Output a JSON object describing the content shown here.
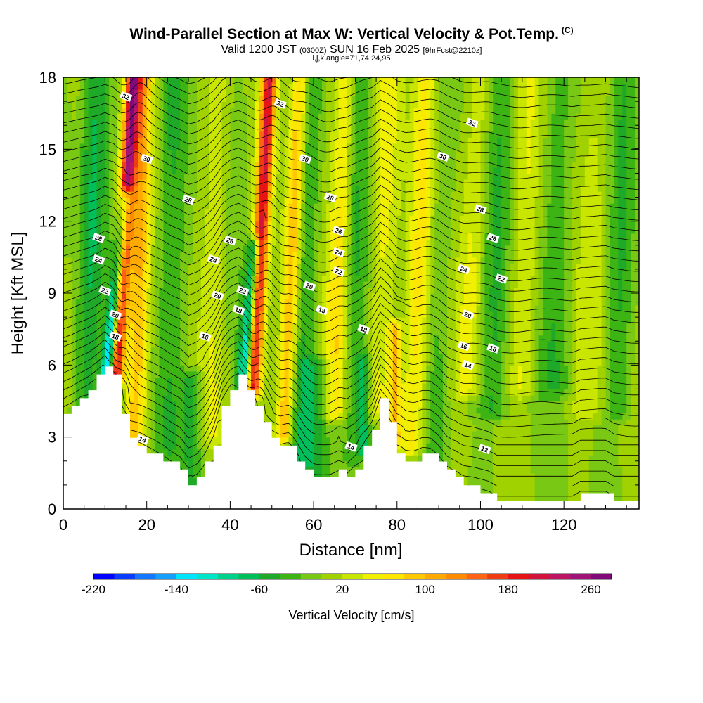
{
  "titles": {
    "main": "Wind-Parallel Section at Max W: Vertical Velocity & Pot.Temp.",
    "copyright": "(C)",
    "valid_prefix": "Valid 1200 JST",
    "valid_utc": "(0300Z)",
    "valid_date": "SUN 16 Feb 2025",
    "forecast": "[9hrFcst@2210z]",
    "params": "i,j,k,angle=71,74,24,95"
  },
  "chart_data": {
    "type": "heatmap",
    "title": "Wind-Parallel Section at Max W: Vertical Velocity & Pot.Temp.",
    "xlabel": "Distance [nm]",
    "ylabel": "Height [Kft MSL]",
    "xlim": [
      0,
      138
    ],
    "ylim": [
      0,
      18
    ],
    "x_ticks": [
      "0",
      "20",
      "40",
      "60",
      "80",
      "100",
      "120"
    ],
    "y_ticks": [
      "0",
      "3",
      "6",
      "9",
      "12",
      "15",
      "18"
    ],
    "colorbar": {
      "label": "Vertical Velocity [cm/s]",
      "min": -220,
      "max": 280,
      "step": 20,
      "tick_labels": [
        "-220",
        "-140",
        "-60",
        "20",
        "100",
        "180",
        "260"
      ],
      "colors": [
        "#0000ff",
        "#0a3cff",
        "#1478ff",
        "#14a0ff",
        "#00e6ff",
        "#00e6c8",
        "#00d28c",
        "#00be5a",
        "#1eaa28",
        "#3cb414",
        "#78c814",
        "#a0d200",
        "#c8e600",
        "#f0f000",
        "#ffe600",
        "#ffc800",
        "#ffaa00",
        "#ff8c00",
        "#ff6414",
        "#f03c14",
        "#e61414",
        "#d2143c",
        "#be1464",
        "#a01478",
        "#820a78"
      ]
    },
    "terrain_kft": [
      [
        0,
        3.9
      ],
      [
        2,
        4.2
      ],
      [
        4,
        4.6
      ],
      [
        6,
        5.0
      ],
      [
        8,
        5.5
      ],
      [
        10,
        6.1
      ],
      [
        12,
        5.6
      ],
      [
        14,
        4.0
      ],
      [
        16,
        2.9
      ],
      [
        18,
        2.6
      ],
      [
        20,
        2.3
      ],
      [
        24,
        2.1
      ],
      [
        28,
        1.6
      ],
      [
        30,
        1.0
      ],
      [
        32,
        1.3
      ],
      [
        34,
        1.9
      ],
      [
        36,
        2.8
      ],
      [
        38,
        4.3
      ],
      [
        40,
        5.1
      ],
      [
        42,
        5.5
      ],
      [
        44,
        5.0
      ],
      [
        46,
        4.2
      ],
      [
        48,
        3.6
      ],
      [
        50,
        3.0
      ],
      [
        52,
        2.6
      ],
      [
        54,
        2.5
      ],
      [
        56,
        2.0
      ],
      [
        58,
        1.5
      ],
      [
        60,
        1.3
      ],
      [
        64,
        1.3
      ],
      [
        66,
        1.5
      ],
      [
        68,
        1.3
      ],
      [
        70,
        1.8
      ],
      [
        72,
        2.6
      ],
      [
        74,
        3.3
      ],
      [
        76,
        4.5
      ],
      [
        78,
        3.6
      ],
      [
        80,
        2.4
      ],
      [
        82,
        2.0
      ],
      [
        84,
        2.1
      ],
      [
        86,
        2.3
      ],
      [
        88,
        2.3
      ],
      [
        90,
        2.0
      ],
      [
        92,
        1.5
      ],
      [
        94,
        1.3
      ],
      [
        96,
        1.0
      ],
      [
        98,
        0.9
      ],
      [
        102,
        0.6
      ],
      [
        104,
        0.3
      ],
      [
        110,
        0.3
      ],
      [
        118,
        0.3
      ],
      [
        122,
        0.3
      ],
      [
        124,
        0.6
      ],
      [
        130,
        0.6
      ],
      [
        132,
        0.3
      ],
      [
        136,
        0.3
      ],
      [
        138,
        0.3
      ]
    ],
    "vertical_velocity_features": [
      {
        "x": 10.5,
        "value": -180,
        "width_nm": 1.5,
        "y_min": 5.5,
        "y_max": 13,
        "lean": 0.6
      },
      {
        "x": 12.5,
        "value": 230,
        "width_nm": 1.8,
        "y_min": 5.5,
        "y_max": 18,
        "lean": 0.35
      },
      {
        "x": 17,
        "value": 90,
        "width_nm": 2.5,
        "y_min": 2.5,
        "y_max": 18,
        "lean": 0.15
      },
      {
        "x": 5,
        "value": -60,
        "width_nm": 3,
        "y_min": 4,
        "y_max": 18,
        "lean": 0.2
      },
      {
        "x": 25,
        "value": -30,
        "width_nm": 4,
        "y_min": 2.5,
        "y_max": 18,
        "lean": 0.1
      },
      {
        "x": 31,
        "value": -50,
        "width_nm": 2.5,
        "y_min": 1.0,
        "y_max": 5.5,
        "lean": 0.0
      },
      {
        "x": 36,
        "value": 30,
        "width_nm": 3,
        "y_min": 3,
        "y_max": 18,
        "lean": 0.1
      },
      {
        "x": 43,
        "value": -120,
        "width_nm": 1.5,
        "y_min": 5.2,
        "y_max": 11,
        "lean": 0.5
      },
      {
        "x": 45.5,
        "value": 190,
        "width_nm": 1.8,
        "y_min": 5.0,
        "y_max": 18,
        "lean": 0.3
      },
      {
        "x": 53,
        "value": 110,
        "width_nm": 2.0,
        "y_min": 3.0,
        "y_max": 18,
        "lean": 0.25
      },
      {
        "x": 57,
        "value": -40,
        "width_nm": 3,
        "y_min": 2,
        "y_max": 18,
        "lean": 0.15
      },
      {
        "x": 61,
        "value": -50,
        "width_nm": 4,
        "y_min": 1.3,
        "y_max": 6,
        "lean": 0.0
      },
      {
        "x": 65,
        "value": 70,
        "width_nm": 2.5,
        "y_min": 4,
        "y_max": 18,
        "lean": 0.2
      },
      {
        "x": 69,
        "value": -30,
        "width_nm": 3,
        "y_min": 2,
        "y_max": 18,
        "lean": 0.1
      },
      {
        "x": 72,
        "value": -60,
        "width_nm": 1.5,
        "y_min": 2.5,
        "y_max": 6.2,
        "lean": 0.0
      },
      {
        "x": 75,
        "value": 40,
        "width_nm": 3,
        "y_min": 4,
        "y_max": 18,
        "lean": 0.2
      },
      {
        "x": 79.5,
        "value": 90,
        "width_nm": 1.5,
        "y_min": 3,
        "y_max": 7.5,
        "lean": 0.0
      },
      {
        "x": 84,
        "value": 80,
        "width_nm": 3,
        "y_min": 2.5,
        "y_max": 18,
        "lean": 0.2
      },
      {
        "x": 89,
        "value": -30,
        "width_nm": 3.5,
        "y_min": 2,
        "y_max": 18,
        "lean": 0.15
      },
      {
        "x": 97,
        "value": 50,
        "width_nm": 3,
        "y_min": 5,
        "y_max": 18,
        "lean": 0.25
      },
      {
        "x": 103,
        "value": -40,
        "width_nm": 4,
        "y_min": 4,
        "y_max": 18,
        "lean": 0.2
      },
      {
        "x": 110,
        "value": 40,
        "width_nm": 4,
        "y_min": 5,
        "y_max": 18,
        "lean": 0.2
      },
      {
        "x": 118,
        "value": -30,
        "width_nm": 5,
        "y_min": 5,
        "y_max": 18,
        "lean": 0.15
      },
      {
        "x": 126,
        "value": 30,
        "width_nm": 4,
        "y_min": 4,
        "y_max": 18,
        "lean": 0.2
      },
      {
        "x": 133,
        "value": -40,
        "width_nm": 3,
        "y_min": 4,
        "y_max": 18,
        "lean": 0.15
      }
    ],
    "background_value": 0,
    "potential_temperature_contours": {
      "label_values": [
        "12",
        "14",
        "16",
        "18",
        "20",
        "22",
        "24",
        "26",
        "28",
        "30",
        "32"
      ],
      "annotations": [
        {
          "text": "32",
          "x": 15,
          "y": 17.2
        },
        {
          "text": "32",
          "x": 52,
          "y": 16.9
        },
        {
          "text": "32",
          "x": 98,
          "y": 16.1
        },
        {
          "text": "30",
          "x": 20,
          "y": 14.6
        },
        {
          "text": "30",
          "x": 58,
          "y": 14.6
        },
        {
          "text": "30",
          "x": 91,
          "y": 14.7
        },
        {
          "text": "28",
          "x": 30,
          "y": 12.9
        },
        {
          "text": "28",
          "x": 64,
          "y": 13.0
        },
        {
          "text": "28",
          "x": 100,
          "y": 12.5
        },
        {
          "text": "28",
          "x": 8.5,
          "y": 11.3
        },
        {
          "text": "26",
          "x": 40,
          "y": 11.2
        },
        {
          "text": "26",
          "x": 66,
          "y": 11.6
        },
        {
          "text": "26",
          "x": 103,
          "y": 11.3
        },
        {
          "text": "24",
          "x": 8.5,
          "y": 10.4
        },
        {
          "text": "24",
          "x": 36,
          "y": 10.4
        },
        {
          "text": "24",
          "x": 66,
          "y": 10.7
        },
        {
          "text": "24",
          "x": 96,
          "y": 10.0
        },
        {
          "text": "22",
          "x": 10,
          "y": 9.1
        },
        {
          "text": "22",
          "x": 43,
          "y": 9.1
        },
        {
          "text": "22",
          "x": 66,
          "y": 9.9
        },
        {
          "text": "22",
          "x": 105,
          "y": 9.6
        },
        {
          "text": "20",
          "x": 12.5,
          "y": 8.1
        },
        {
          "text": "20",
          "x": 37,
          "y": 8.9
        },
        {
          "text": "20",
          "x": 59,
          "y": 9.3
        },
        {
          "text": "20",
          "x": 97,
          "y": 8.1
        },
        {
          "text": "18",
          "x": 12.5,
          "y": 7.2
        },
        {
          "text": "18",
          "x": 42,
          "y": 8.3
        },
        {
          "text": "18",
          "x": 62,
          "y": 8.3
        },
        {
          "text": "18",
          "x": 72,
          "y": 7.5
        },
        {
          "text": "18",
          "x": 103,
          "y": 6.7
        },
        {
          "text": "16",
          "x": 34,
          "y": 7.2
        },
        {
          "text": "16",
          "x": 96,
          "y": 6.8
        },
        {
          "text": "14",
          "x": 19,
          "y": 2.9
        },
        {
          "text": "14",
          "x": 69,
          "y": 2.6
        },
        {
          "text": "14",
          "x": 97,
          "y": 6.0
        },
        {
          "text": "12",
          "x": 101,
          "y": 2.5
        }
      ]
    }
  }
}
